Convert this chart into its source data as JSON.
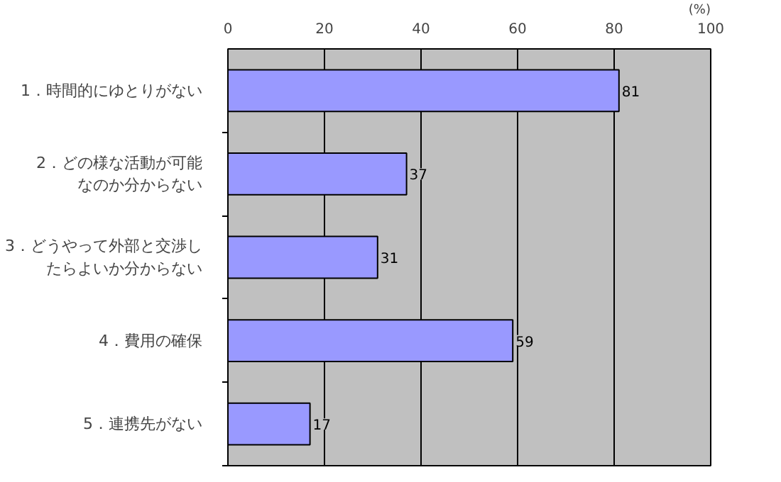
{
  "chart_data": {
    "type": "bar",
    "orientation": "horizontal",
    "xlabel": "(%)",
    "categories": [
      "1．時間的にゆとりがない",
      "2．どの様な活動が可能なのか分からない",
      "3．どうやって外部と交渉したらよいか分からない",
      "4．費用の確保",
      "5．連携先がない"
    ],
    "values": [
      81,
      37,
      31,
      59,
      17
    ],
    "color": "#9999ff",
    "xlim": [
      0,
      100
    ],
    "xticks": [
      0,
      20,
      40,
      60,
      80,
      100
    ],
    "grid": "x",
    "data_labels": true
  }
}
